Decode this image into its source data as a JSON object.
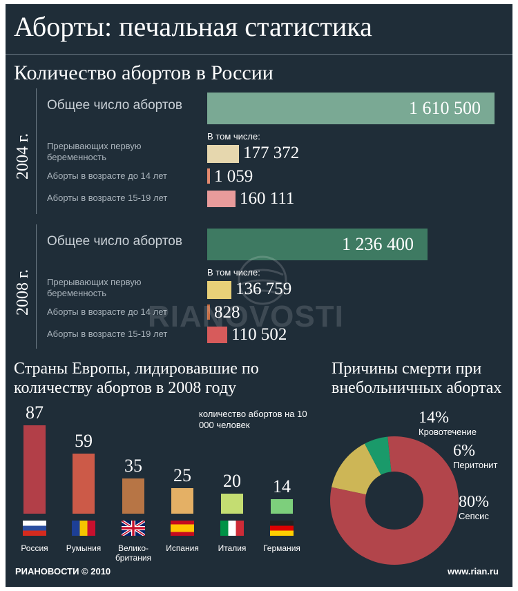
{
  "title": "Аборты: печальная статистика",
  "chart_data": [
    {
      "type": "bar",
      "title": "Количество абортов в России",
      "orientation": "horizontal",
      "groups": [
        {
          "year_label": "2004 г.",
          "included_label": "В том числе:",
          "rows": [
            {
              "label": "Общее число абортов",
              "value": 1610500,
              "value_label": "1 610 500",
              "color": "#7aa994"
            },
            {
              "label": "Прерывающих первую беременность",
              "value": 177372,
              "value_label": "177 372",
              "color": "#e6d7ae"
            },
            {
              "label": "Аборты в возрасте до 14 лет",
              "value": 1059,
              "value_label": "1 059",
              "color": "#e58a6e"
            },
            {
              "label": "Аборты в возрасте 15-19 лет",
              "value": 160111,
              "value_label": "160 111",
              "color": "#e89b9b"
            }
          ]
        },
        {
          "year_label": "2008 г.",
          "included_label": "В том числе:",
          "rows": [
            {
              "label": "Общее число  абортов",
              "value": 1236400,
              "value_label": "1 236 400",
              "color": "#3e7a62"
            },
            {
              "label": "Прерывающих первую беременность",
              "value": 136759,
              "value_label": "136 759",
              "color": "#e8d078"
            },
            {
              "label": "Аборты в возрасте до 14 лет",
              "value": 828,
              "value_label": "828",
              "color": "#c56b40"
            },
            {
              "label": "Аборты в возрасте 15-19 лет",
              "value": 110502,
              "value_label": "110 502",
              "color": "#d75b5b"
            }
          ]
        }
      ]
    },
    {
      "type": "bar",
      "title": "Страны Европы, лидировавшие по количеству абортов в 2008 году",
      "note": "количество абортов на 10 000 человек",
      "categories": [
        "Россия",
        "Румыния",
        "Велико-британия",
        "Испания",
        "Италия",
        "Германия"
      ],
      "values": [
        87,
        59,
        35,
        25,
        20,
        14
      ],
      "colors": [
        "#b23f48",
        "#cc5a48",
        "#b77545",
        "#e4b065",
        "#c4dd72",
        "#7dcf7c"
      ]
    },
    {
      "type": "pie",
      "title": "Причины смерти при внебольничных абортах",
      "slices": [
        {
          "label": "Кровотечение",
          "value": 14,
          "pct_label": "14%",
          "color": "#cdb656"
        },
        {
          "label": "Перитонит",
          "value": 6,
          "pct_label": "6%",
          "color": "#1a9a6a"
        },
        {
          "label": "Сепсис",
          "value": 80,
          "pct_label": "80%",
          "color": "#b2454b"
        }
      ]
    }
  ],
  "watermark": "RIANOVOSTI",
  "footer": {
    "logo": "РИАНОВОСТИ © 2010",
    "url": "www.rian.ru"
  },
  "flags": [
    "russia-flag-icon",
    "romania-flag-icon",
    "uk-flag-icon",
    "spain-flag-icon",
    "italy-flag-icon",
    "germany-flag-icon"
  ]
}
